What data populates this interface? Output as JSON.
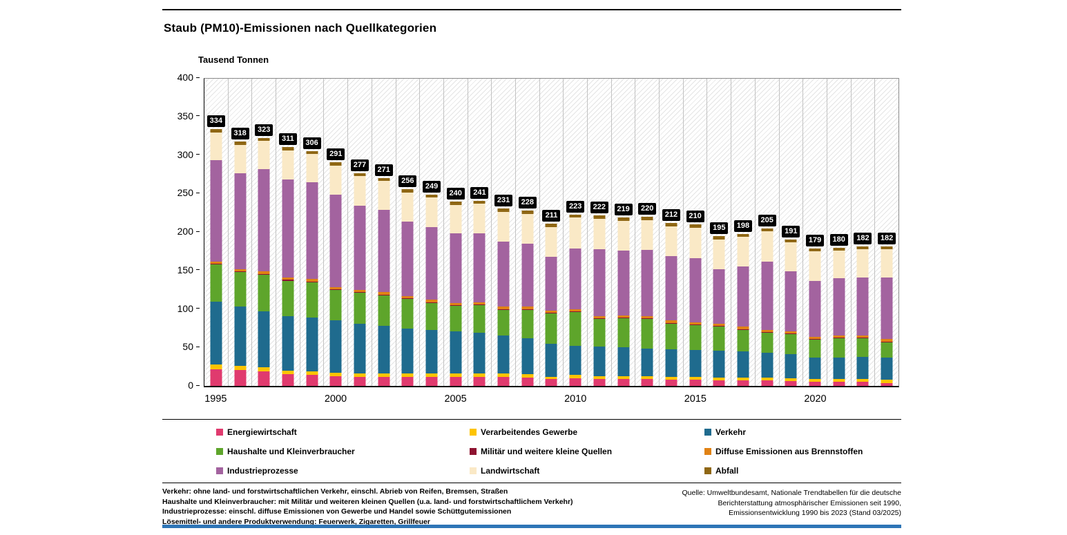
{
  "chart_data": {
    "type": "bar",
    "stacked": true,
    "title": "Staub (PM10)-Emissionen nach Quellkategorien",
    "ylabel": "Tausend Tonnen",
    "ylim": [
      0,
      400
    ],
    "yticks": [
      0,
      50,
      100,
      150,
      200,
      250,
      300,
      350,
      400
    ],
    "grid": "hatched-background-with-vertical-gridlines",
    "legend_position": "bottom",
    "categories": [
      1995,
      1996,
      1997,
      1998,
      1999,
      2000,
      2001,
      2002,
      2003,
      2004,
      2005,
      2006,
      2007,
      2008,
      2009,
      2010,
      2011,
      2012,
      2013,
      2014,
      2015,
      2016,
      2017,
      2018,
      2019,
      2020,
      2021,
      2022,
      2023
    ],
    "x_years_shown": [
      1995,
      2000,
      2005,
      2010,
      2015,
      2020
    ],
    "totals": [
      334,
      318,
      323,
      311,
      306,
      291,
      277,
      271,
      256,
      249,
      240,
      241,
      231,
      228,
      211,
      223,
      222,
      219,
      220,
      212,
      210,
      195,
      198,
      205,
      191,
      179,
      180,
      182,
      182
    ],
    "series": [
      {
        "name": "Energiewirtschaft",
        "slug": "energiewirtschaft",
        "color": "#e03a6e",
        "values": [
          22,
          21,
          19,
          15,
          14,
          13,
          12,
          12,
          12,
          12,
          12,
          12,
          12,
          11,
          9,
          10,
          9,
          9,
          9,
          8,
          8,
          7,
          7,
          7,
          6,
          5,
          5,
          5,
          4
        ]
      },
      {
        "name": "Verarbeitendes Gewerbe",
        "slug": "verarbeitendes-gewerbe",
        "color": "#fdc400",
        "values": [
          6,
          5,
          5,
          5,
          5,
          4,
          4,
          4,
          4,
          4,
          4,
          4,
          4,
          4,
          3,
          4,
          4,
          4,
          4,
          4,
          4,
          4,
          4,
          4,
          4,
          4,
          4,
          4,
          4
        ]
      },
      {
        "name": "Verkehr",
        "slug": "verkehr",
        "color": "#1f6b8e",
        "values": [
          82,
          77,
          73,
          71,
          70,
          68,
          65,
          62,
          59,
          57,
          55,
          53,
          50,
          47,
          43,
          38,
          38,
          37,
          36,
          36,
          35,
          35,
          34,
          32,
          31,
          28,
          28,
          29,
          29
        ]
      },
      {
        "name": "Haushalte und Kleinverbraucher",
        "slug": "haushalte-und-kleinverbraucher",
        "color": "#5ea52b",
        "values": [
          48,
          45,
          48,
          46,
          46,
          40,
          40,
          40,
          38,
          35,
          33,
          36,
          33,
          37,
          39,
          44,
          36,
          38,
          38,
          33,
          32,
          31,
          28,
          26,
          26,
          23,
          25,
          24,
          20
        ]
      },
      {
        "name": "Militär und weitere kleine Quellen",
        "slug": "militaer-und-weitere-kleine-quellen",
        "color": "#8e1230",
        "values": [
          1,
          1,
          1,
          1,
          1,
          1,
          1,
          1,
          1,
          1,
          1,
          1,
          1,
          1,
          1,
          1,
          1,
          1,
          1,
          1,
          1,
          1,
          1,
          1,
          1,
          1,
          1,
          1,
          1
        ]
      },
      {
        "name": "Diffuse Emissionen aus Brennstoffen",
        "slug": "diffuse-emissionen-aus-brennstoffen",
        "color": "#e08214",
        "values": [
          3,
          3,
          3,
          3,
          3,
          3,
          3,
          3,
          3,
          3,
          3,
          3,
          3,
          3,
          3,
          3,
          3,
          3,
          3,
          3,
          3,
          3,
          3,
          3,
          3,
          3,
          3,
          3,
          3
        ]
      },
      {
        "name": "Industrieprozesse",
        "slug": "industrieprozesse",
        "color": "#a3639f",
        "values": [
          132,
          125,
          133,
          128,
          126,
          120,
          110,
          107,
          97,
          95,
          91,
          90,
          85,
          82,
          70,
          79,
          87,
          84,
          86,
          84,
          83,
          71,
          79,
          89,
          78,
          73,
          74,
          75,
          80
        ]
      },
      {
        "name": "Landwirtschaft",
        "slug": "landwirtschaft",
        "color": "#fae9c6",
        "values": [
          36,
          37,
          37,
          38,
          37,
          38,
          38,
          38,
          38,
          38,
          37,
          38,
          39,
          39,
          39,
          40,
          40,
          39,
          39,
          39,
          40,
          39,
          38,
          39,
          38,
          38,
          36,
          37,
          37
        ]
      },
      {
        "name": "Abfall",
        "slug": "abfall",
        "color": "#8f6714",
        "values": [
          4,
          4,
          4,
          4,
          4,
          4,
          4,
          4,
          4,
          4,
          4,
          4,
          4,
          4,
          4,
          4,
          4,
          4,
          4,
          4,
          4,
          4,
          4,
          4,
          4,
          4,
          4,
          4,
          4
        ]
      }
    ]
  },
  "footnotes_left": [
    "Verkehr: ohne land- und forstwirtschaftlichen Verkehr, einschl. Abrieb von Reifen, Bremsen, Straßen",
    "Haushalte und Kleinverbraucher: mit Militär und weiteren kleinen Quellen (u.a. land- und forstwirtschaftlichem Verkehr)",
    "Industrieprozesse: einschl. diffuse Emissionen von Gewerbe und Handel sowie Schüttgutemissionen",
    "Lösemittel- und andere Produktverwendung: Feuerwerk, Zigaretten, Grillfeuer"
  ],
  "footnotes_right": [
    "Quelle: Umweltbundesamt, Nationale Trendtabellen für die deutsche",
    "Berichterstattung atmosphärischer Emissionen seit 1990,",
    "Emissionsentwicklung 1990 bis 2023 (Stand 03/2025)"
  ]
}
